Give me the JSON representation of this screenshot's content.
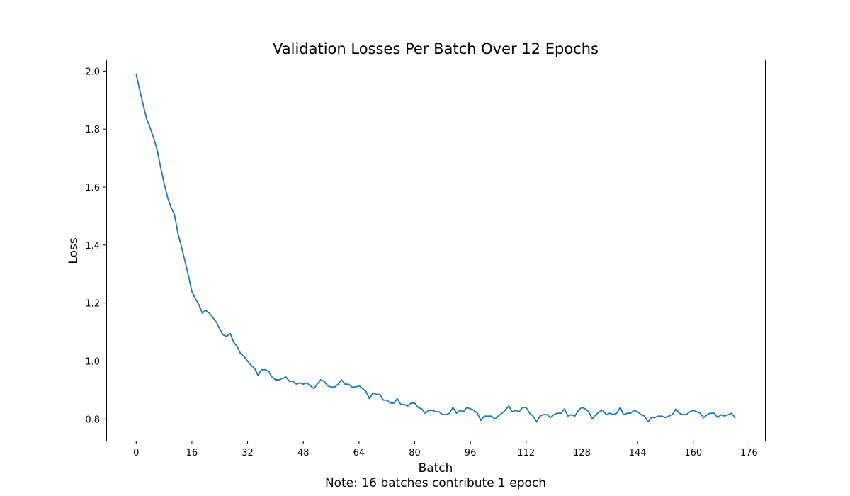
{
  "chart_data": {
    "type": "line",
    "title": "Validation Losses Per Batch Over 12 Epochs",
    "xlabel": "Batch",
    "ylabel": "Loss",
    "note": "Note: 16 batches contribute 1 epoch",
    "xlim": [
      -8.6,
      180.6
    ],
    "ylim": [
      0.725,
      2.04
    ],
    "x_ticks": [
      0,
      16,
      32,
      48,
      64,
      80,
      96,
      112,
      128,
      144,
      160,
      176
    ],
    "y_ticks": [
      0.8,
      1.0,
      1.2,
      1.4,
      1.6,
      1.8,
      2.0
    ],
    "y_tick_labels": [
      "0.8",
      "1.0",
      "1.2",
      "1.4",
      "1.6",
      "1.8",
      "2.0"
    ],
    "grid": false,
    "line_color": "#1f77b4",
    "series": [
      {
        "x": [
          0,
          1,
          2,
          3,
          4,
          5,
          6,
          7,
          8,
          9,
          10,
          11,
          12,
          13,
          14,
          15,
          16,
          17,
          18,
          19,
          20,
          21,
          22,
          23,
          24,
          25,
          26,
          27,
          28,
          29,
          30,
          31,
          32,
          33,
          34,
          35,
          36,
          37,
          38,
          39,
          40,
          41,
          42,
          43,
          44,
          45,
          46,
          47,
          48,
          49,
          50,
          51,
          52,
          53,
          54,
          55,
          56,
          57,
          58,
          59,
          60,
          61,
          62,
          63,
          64,
          65,
          66,
          67,
          68,
          69,
          70,
          71,
          72,
          73,
          74,
          75,
          76,
          77,
          78,
          79,
          80,
          81,
          82,
          83,
          84,
          85,
          86,
          87,
          88,
          89,
          90,
          91,
          92,
          93,
          94,
          95,
          96,
          97,
          98,
          99,
          100,
          101,
          102,
          103,
          104,
          105,
          106,
          107,
          108,
          109,
          110,
          111,
          112,
          113,
          114,
          115,
          116,
          117,
          118,
          119,
          120,
          121,
          122,
          123,
          124,
          125,
          126,
          127,
          128,
          129,
          130,
          131,
          132,
          133,
          134,
          135,
          136,
          137,
          138,
          139,
          140,
          141,
          142,
          143,
          144,
          145,
          146,
          147,
          148,
          149,
          150,
          151,
          152,
          153,
          154,
          155,
          156,
          157,
          158,
          159,
          160,
          161,
          162,
          163,
          164,
          165,
          166,
          167,
          168,
          169,
          170,
          171,
          172
        ],
        "values": [
          1.99,
          1.935,
          1.885,
          1.835,
          1.805,
          1.77,
          1.73,
          1.67,
          1.615,
          1.565,
          1.53,
          1.505,
          1.44,
          1.395,
          1.345,
          1.295,
          1.24,
          1.215,
          1.195,
          1.165,
          1.175,
          1.165,
          1.15,
          1.135,
          1.11,
          1.09,
          1.085,
          1.095,
          1.065,
          1.05,
          1.025,
          1.015,
          1.0,
          0.985,
          0.975,
          0.95,
          0.97,
          0.97,
          0.965,
          0.945,
          0.935,
          0.935,
          0.94,
          0.945,
          0.93,
          0.93,
          0.92,
          0.925,
          0.92,
          0.925,
          0.915,
          0.905,
          0.92,
          0.935,
          0.93,
          0.915,
          0.91,
          0.91,
          0.92,
          0.935,
          0.92,
          0.92,
          0.91,
          0.91,
          0.915,
          0.905,
          0.895,
          0.87,
          0.89,
          0.885,
          0.885,
          0.865,
          0.865,
          0.855,
          0.855,
          0.87,
          0.85,
          0.85,
          0.845,
          0.855,
          0.855,
          0.84,
          0.835,
          0.82,
          0.83,
          0.83,
          0.825,
          0.825,
          0.815,
          0.815,
          0.82,
          0.84,
          0.82,
          0.83,
          0.825,
          0.84,
          0.835,
          0.83,
          0.82,
          0.795,
          0.81,
          0.81,
          0.81,
          0.8,
          0.81,
          0.82,
          0.83,
          0.845,
          0.825,
          0.83,
          0.825,
          0.84,
          0.84,
          0.82,
          0.81,
          0.79,
          0.81,
          0.815,
          0.815,
          0.805,
          0.815,
          0.82,
          0.82,
          0.835,
          0.81,
          0.815,
          0.81,
          0.83,
          0.84,
          0.835,
          0.825,
          0.8,
          0.815,
          0.825,
          0.83,
          0.815,
          0.82,
          0.815,
          0.82,
          0.84,
          0.815,
          0.82,
          0.82,
          0.83,
          0.825,
          0.815,
          0.81,
          0.79,
          0.805,
          0.805,
          0.81,
          0.81,
          0.805,
          0.81,
          0.815,
          0.835,
          0.82,
          0.815,
          0.815,
          0.825,
          0.83,
          0.825,
          0.82,
          0.805,
          0.815,
          0.82,
          0.82,
          0.805,
          0.815,
          0.81,
          0.815,
          0.82,
          0.805
        ]
      }
    ]
  }
}
